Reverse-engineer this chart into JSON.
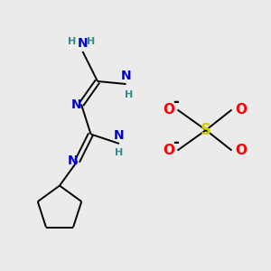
{
  "bg_color": "#ebebeb",
  "bond_color": "#000000",
  "N_color": "#0000cc",
  "H_color": "#2e8b8b",
  "O_color": "#ff0000",
  "S_color": "#cccc00",
  "neg_color": "#000000",
  "figsize": [
    3.0,
    3.0
  ],
  "dpi": 100,
  "xlim": [
    0,
    10
  ],
  "ylim": [
    0,
    10
  ]
}
